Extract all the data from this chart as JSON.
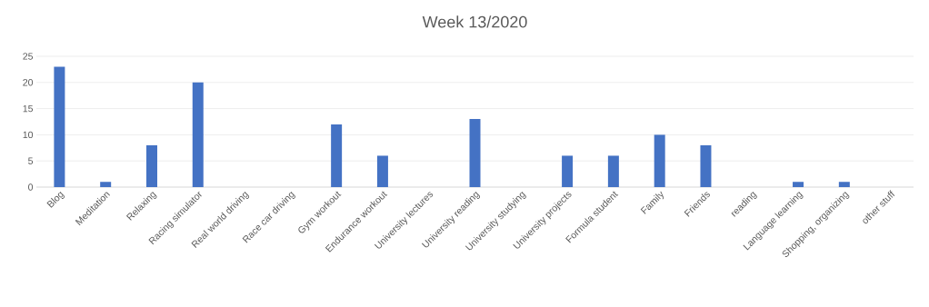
{
  "chart_data": {
    "type": "bar",
    "title": "Week 13/2020",
    "categories": [
      "Blog",
      "Meditation",
      "Relaxing",
      "Racing simulator",
      "Real world driving",
      "Race car driving",
      "Gym workout",
      "Endurance workout",
      "University lectures",
      "University reading",
      "University studying",
      "University projects",
      "Formula student",
      "Family",
      "Friends",
      "reading",
      "Language  learning",
      "Shopping, organizing",
      "other stuff"
    ],
    "values": [
      23,
      1,
      8,
      20,
      0,
      0,
      12,
      6,
      0,
      13,
      0,
      6,
      6,
      10,
      8,
      0,
      1,
      1,
      0
    ],
    "color": "#4472c4",
    "ylim": [
      0,
      25
    ],
    "yticks": [
      0,
      5,
      10,
      15,
      20,
      25
    ],
    "grid": "y"
  }
}
